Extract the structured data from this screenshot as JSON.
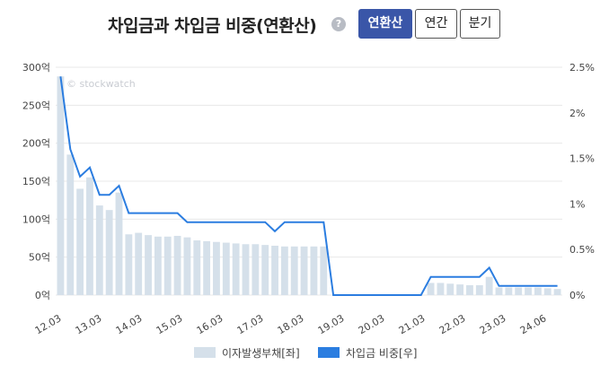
{
  "header": {
    "title": "차입금과 차입금 비중(연환산)",
    "help_icon": "?",
    "buttons": [
      {
        "label": "연환산",
        "active": true
      },
      {
        "label": "연간",
        "active": false
      },
      {
        "label": "분기",
        "active": false
      }
    ]
  },
  "watermark": "© stockwatch",
  "colors": {
    "bar": "#d5e0ea",
    "line": "#2b7de0",
    "grid": "#e8e8e8",
    "active_button": "#3a56a8"
  },
  "chart_data": {
    "type": "bar+line",
    "x_tick_labels": [
      "12.03",
      "13.03",
      "14.03",
      "15.03",
      "16.03",
      "17.03",
      "18.03",
      "19.03",
      "20.03",
      "21.03",
      "22.03",
      "23.03",
      "24.06"
    ],
    "y_left": {
      "ticks": [
        "0억",
        "50억",
        "100억",
        "150억",
        "200억",
        "250억",
        "300억"
      ],
      "range": [
        0,
        300
      ],
      "unit": "억"
    },
    "y_right": {
      "ticks": [
        "0%",
        "0.5%",
        "1%",
        "1.5%",
        "2%",
        "2.5%"
      ],
      "range": [
        0,
        2.5
      ],
      "unit": "%"
    },
    "series": [
      {
        "name": "이자발생부채[좌]",
        "type": "bar",
        "axis": "left",
        "values": [
          288,
          185,
          140,
          155,
          118,
          112,
          135,
          80,
          82,
          79,
          77,
          77,
          78,
          76,
          72,
          71,
          70,
          69,
          68,
          67,
          67,
          66,
          65,
          64,
          64,
          64,
          64,
          64,
          0,
          0,
          0,
          0,
          0,
          0,
          0,
          0,
          0,
          0,
          16,
          16,
          15,
          14,
          13,
          13,
          24,
          10,
          10,
          10,
          10,
          10,
          9,
          8
        ]
      },
      {
        "name": "차입금 비중[우]",
        "type": "line",
        "axis": "right",
        "values": [
          2.4,
          1.6,
          1.3,
          1.4,
          1.1,
          1.1,
          1.2,
          0.9,
          0.9,
          0.9,
          0.9,
          0.9,
          0.9,
          0.8,
          0.8,
          0.8,
          0.8,
          0.8,
          0.8,
          0.8,
          0.8,
          0.8,
          0.7,
          0.8,
          0.8,
          0.8,
          0.8,
          0.8,
          0,
          0,
          0,
          0,
          0,
          0,
          0,
          0,
          0,
          0,
          0.2,
          0.2,
          0.2,
          0.2,
          0.2,
          0.2,
          0.3,
          0.1,
          0.1,
          0.1,
          0.1,
          0.1,
          0.1,
          0.1
        ]
      }
    ],
    "legend": {
      "position": "bottom"
    },
    "grid": true
  }
}
